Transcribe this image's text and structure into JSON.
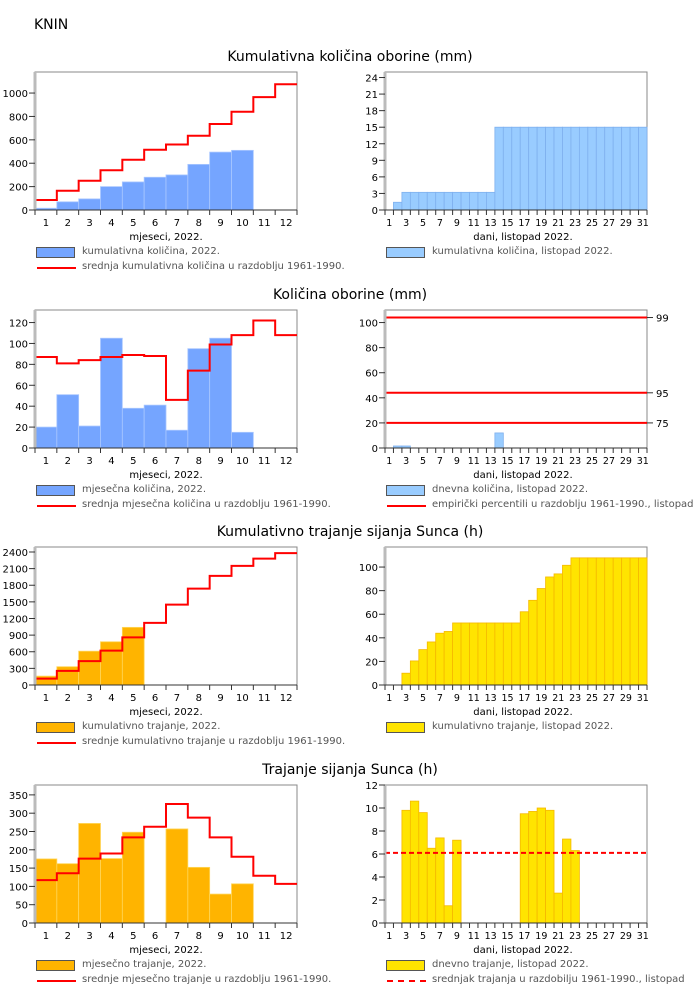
{
  "station": "KNIN",
  "sections": [
    {
      "title": "Kumulativna količina oborine (mm)"
    },
    {
      "title": "Količina oborine (mm)"
    },
    {
      "title": "Kumulativno trajanje sijanja Sunca (h)"
    },
    {
      "title": "Trajanje sijanja Sunca (h)"
    }
  ],
  "chart_data": [
    {
      "type": "bar",
      "section": 0,
      "xlabel": "mjeseci, 2022.",
      "x": [
        1,
        2,
        3,
        4,
        5,
        6,
        7,
        8,
        9,
        10,
        11,
        12
      ],
      "xtick_labels": [
        1,
        2,
        3,
        4,
        5,
        6,
        7,
        8,
        9,
        10,
        11,
        12
      ],
      "ylim": [
        0,
        1180
      ],
      "yticks": [
        0,
        200,
        400,
        600,
        800,
        1000
      ],
      "series": [
        {
          "name": "kumulativna količina, 2022.",
          "color": "#75a5ff",
          "edge": "#a9c7ff",
          "values": [
            15,
            70,
            95,
            200,
            240,
            280,
            300,
            390,
            495,
            510,
            null,
            null
          ]
        }
      ],
      "lines": [
        {
          "name": "srednja kumulativna količina u razdoblju 1961-1990.",
          "color": "#ff0000",
          "values": [
            85,
            165,
            250,
            340,
            430,
            515,
            560,
            635,
            735,
            840,
            965,
            1075
          ]
        }
      ]
    },
    {
      "type": "bar",
      "section": 0,
      "xlabel": "dani, listopad 2022.",
      "x": [
        1,
        2,
        3,
        4,
        5,
        6,
        7,
        8,
        9,
        10,
        11,
        12,
        13,
        14,
        15,
        16,
        17,
        18,
        19,
        20,
        21,
        22,
        23,
        24,
        25,
        26,
        27,
        28,
        29,
        30,
        31
      ],
      "xtick_labels": [
        1,
        3,
        5,
        7,
        9,
        11,
        13,
        15,
        17,
        19,
        21,
        23,
        25,
        27,
        29,
        31
      ],
      "ylim": [
        0,
        25
      ],
      "yticks": [
        0,
        3,
        6,
        9,
        12,
        15,
        18,
        21,
        24
      ],
      "series": [
        {
          "name": "kumulativna količina, listopad 2022.",
          "color": "#99ccff",
          "edge": "#7fb0ee",
          "values": [
            0,
            1.4,
            3.2,
            3.2,
            3.2,
            3.2,
            3.2,
            3.2,
            3.2,
            3.2,
            3.2,
            3.2,
            3.2,
            15,
            15,
            15,
            15,
            15,
            15,
            15,
            15,
            15,
            15,
            15,
            15,
            15,
            15,
            15,
            15,
            15,
            15
          ]
        }
      ]
    },
    {
      "type": "bar",
      "section": 1,
      "xlabel": "mjeseci, 2022.",
      "x": [
        1,
        2,
        3,
        4,
        5,
        6,
        7,
        8,
        9,
        10,
        11,
        12
      ],
      "xtick_labels": [
        1,
        2,
        3,
        4,
        5,
        6,
        7,
        8,
        9,
        10,
        11,
        12
      ],
      "ylim": [
        0,
        132
      ],
      "yticks": [
        0,
        20,
        40,
        60,
        80,
        100,
        120
      ],
      "series": [
        {
          "name": "mjesečna količina, 2022.",
          "color": "#75a5ff",
          "edge": "#a9c7ff",
          "values": [
            20,
            51,
            21,
            105,
            38,
            41,
            17,
            95,
            105,
            15,
            null,
            null
          ]
        }
      ],
      "lines": [
        {
          "name": "srednja mjesečna količina u razdoblju 1961-1990.",
          "color": "#ff0000",
          "values": [
            87,
            81,
            84,
            87,
            89,
            88,
            46,
            74,
            99,
            108,
            122,
            108
          ]
        }
      ]
    },
    {
      "type": "bar",
      "section": 1,
      "xlabel": "dani, listopad 2022.",
      "x": [
        1,
        2,
        3,
        4,
        5,
        6,
        7,
        8,
        9,
        10,
        11,
        12,
        13,
        14,
        15,
        16,
        17,
        18,
        19,
        20,
        21,
        22,
        23,
        24,
        25,
        26,
        27,
        28,
        29,
        30,
        31
      ],
      "xtick_labels": [
        1,
        3,
        5,
        7,
        9,
        11,
        13,
        15,
        17,
        19,
        21,
        23,
        25,
        27,
        29,
        31
      ],
      "ylim": [
        0,
        110
      ],
      "yticks": [
        0,
        20,
        40,
        60,
        80,
        100
      ],
      "series": [
        {
          "name": "dnevna količina, listopad 2022.",
          "color": "#99ccff",
          "edge": "#7fb0ee",
          "values": [
            0,
            1.6,
            1.6,
            0,
            0,
            0,
            0,
            0,
            0,
            0,
            0,
            0,
            0,
            12,
            0,
            0,
            0,
            0,
            0,
            0,
            0,
            0,
            0,
            0,
            0,
            0,
            0,
            0,
            0,
            0,
            0
          ]
        }
      ],
      "hlines": {
        "name": "empirički percentili u razdoblju 1961-1990., listopad",
        "color": "#ff0000",
        "dashed": false,
        "items": [
          {
            "label": "99",
            "value": 104
          },
          {
            "label": "95",
            "value": 44
          },
          {
            "label": "75",
            "value": 20
          }
        ]
      }
    },
    {
      "type": "bar",
      "section": 2,
      "xlabel": "mjeseci, 2022.",
      "x": [
        1,
        2,
        3,
        4,
        5,
        6,
        7,
        8,
        9,
        10,
        11,
        12
      ],
      "xtick_labels": [
        1,
        2,
        3,
        4,
        5,
        6,
        7,
        8,
        9,
        10,
        11,
        12
      ],
      "ylim": [
        0,
        2490
      ],
      "yticks": [
        0,
        300,
        600,
        900,
        1200,
        1500,
        1800,
        2100,
        2400
      ],
      "series": [
        {
          "name": "kumulativno trajanje, 2022.",
          "color": "#ffb400",
          "edge": "#ffd65a",
          "values": [
            160,
            330,
            610,
            780,
            1040,
            null,
            null,
            null,
            null,
            null,
            null,
            null
          ]
        }
      ],
      "lines": [
        {
          "name": "srednje kumulativno trajanje u razdoblju 1961-1990.",
          "color": "#ff0000",
          "values": [
            115,
            255,
            430,
            620,
            860,
            1120,
            1450,
            1740,
            1970,
            2150,
            2280,
            2380
          ]
        }
      ]
    },
    {
      "type": "bar",
      "section": 2,
      "xlabel": "dani, listopad 2022.",
      "x": [
        1,
        2,
        3,
        4,
        5,
        6,
        7,
        8,
        9,
        10,
        11,
        12,
        13,
        14,
        15,
        16,
        17,
        18,
        19,
        20,
        21,
        22,
        23,
        24,
        25,
        26,
        27,
        28,
        29,
        30,
        31
      ],
      "xtick_labels": [
        1,
        3,
        5,
        7,
        9,
        11,
        13,
        15,
        17,
        19,
        21,
        23,
        25,
        27,
        29,
        31
      ],
      "ylim": [
        0,
        117
      ],
      "yticks": [
        0,
        20,
        40,
        60,
        80,
        100
      ],
      "series": [
        {
          "name": "kumulativno trajanje, listopad 2022.",
          "color": "#ffe400",
          "edge": "#f5b800",
          "values": [
            0,
            0,
            10,
            20.4,
            30,
            36.5,
            43.9,
            45.4,
            52.6,
            52.6,
            52.6,
            52.6,
            52.6,
            52.6,
            52.6,
            52.6,
            62.1,
            71.8,
            81.8,
            91.6,
            94.2,
            101.5,
            107.8,
            107.8,
            107.8,
            107.8,
            107.8,
            107.8,
            107.8,
            107.8,
            107.8
          ]
        }
      ]
    },
    {
      "type": "bar",
      "section": 3,
      "xlabel": "mjeseci, 2022.",
      "x": [
        1,
        2,
        3,
        4,
        5,
        6,
        7,
        8,
        9,
        10,
        11,
        12
      ],
      "xtick_labels": [
        1,
        2,
        3,
        4,
        5,
        6,
        7,
        8,
        9,
        10,
        11,
        12
      ],
      "ylim": [
        0,
        377
      ],
      "yticks": [
        0,
        50,
        100,
        150,
        200,
        250,
        300,
        350
      ],
      "series": [
        {
          "name": "mjesečno trajanje, 2022.",
          "color": "#ffb400",
          "edge": "#ffd65a",
          "values": [
            175,
            162,
            272,
            176,
            248,
            null,
            257,
            152,
            79,
            107,
            null,
            null
          ]
        }
      ],
      "lines": [
        {
          "name": "srednje mjesečno trajanje u razdoblju 1961-1990.",
          "color": "#ff0000",
          "values": [
            117,
            136,
            176,
            190,
            234,
            263,
            325,
            288,
            234,
            181,
            129,
            107
          ]
        }
      ]
    },
    {
      "type": "bar",
      "section": 3,
      "xlabel": "dani, listopad 2022.",
      "x": [
        1,
        2,
        3,
        4,
        5,
        6,
        7,
        8,
        9,
        10,
        11,
        12,
        13,
        14,
        15,
        16,
        17,
        18,
        19,
        20,
        21,
        22,
        23,
        24,
        25,
        26,
        27,
        28,
        29,
        30,
        31
      ],
      "xtick_labels": [
        1,
        3,
        5,
        7,
        9,
        11,
        13,
        15,
        17,
        19,
        21,
        23,
        25,
        27,
        29,
        31
      ],
      "ylim": [
        0,
        12
      ],
      "yticks": [
        0,
        2,
        4,
        6,
        8,
        10,
        12
      ],
      "series": [
        {
          "name": "dnevno trajanje, listopad 2022.",
          "color": "#ffe400",
          "edge": "#f5b800",
          "values": [
            0,
            0,
            9.8,
            10.6,
            9.6,
            6.5,
            7.4,
            1.5,
            7.2,
            0,
            0,
            0,
            0,
            0,
            0,
            0,
            9.5,
            9.7,
            10.0,
            9.8,
            2.6,
            7.3,
            6.3,
            0,
            0,
            0,
            0,
            0,
            0,
            0,
            0
          ]
        }
      ],
      "hlines": {
        "name": "srednjak trajanja u razdobilju 1961-1990., listopad",
        "color": "#ff0000",
        "dashed": true,
        "items": [
          {
            "value": 6.1
          }
        ]
      }
    }
  ]
}
